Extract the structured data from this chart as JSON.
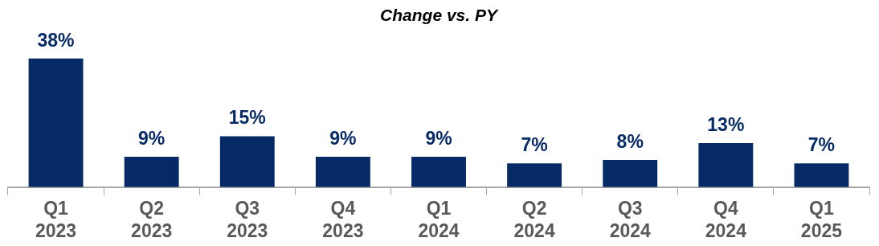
{
  "chart_data": {
    "type": "bar",
    "title": "Change vs. PY",
    "categories": [
      "Q1 2023",
      "Q2 2023",
      "Q3 2023",
      "Q4 2023",
      "Q1 2024",
      "Q2 2024",
      "Q3 2024",
      "Q4 2024",
      "Q1 2025"
    ],
    "values": [
      38,
      9,
      15,
      9,
      9,
      7,
      8,
      13,
      7
    ],
    "value_labels": [
      "38%",
      "9%",
      "15%",
      "9%",
      "9%",
      "7%",
      "8%",
      "13%",
      "7%"
    ],
    "color": "#062a66",
    "tick_labels": "x",
    "grid": false,
    "legend": false
  }
}
